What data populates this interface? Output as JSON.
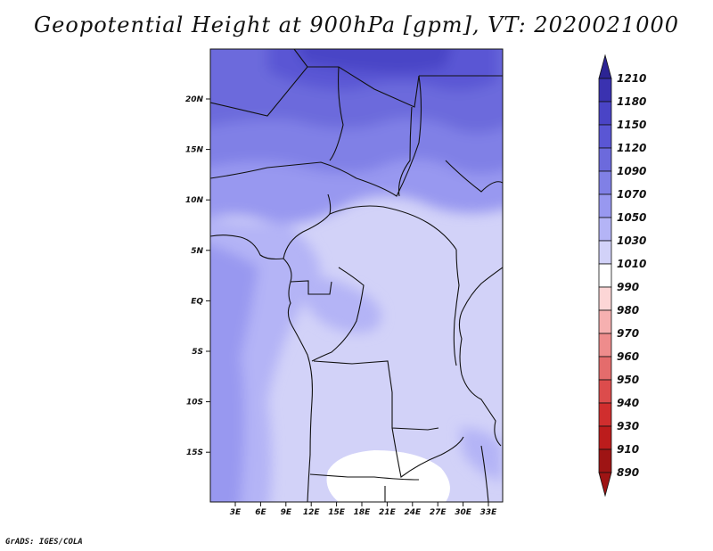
{
  "title": "Geopotential Height at 900hPa [gpm], VT: 2020021000",
  "credit": "GrADS: IGES/COLA",
  "map": {
    "lat_labels": [
      "20N",
      "15N",
      "10N",
      "5N",
      "EQ",
      "5S",
      "10S",
      "15S"
    ],
    "lon_labels": [
      "3E",
      "6E",
      "9E",
      "12E",
      "15E",
      "18E",
      "21E",
      "24E",
      "27E",
      "30E",
      "33E"
    ]
  },
  "colorbar": {
    "levels": [
      "1210",
      "1180",
      "1150",
      "1120",
      "1090",
      "1070",
      "1050",
      "1030",
      "1010",
      "990",
      "980",
      "970",
      "960",
      "950",
      "940",
      "930",
      "910",
      "890"
    ],
    "colors": [
      "#2c2494",
      "#3a32b0",
      "#4a44c6",
      "#5a56d4",
      "#6c6adc",
      "#8080e6",
      "#9898f0",
      "#b4b4f6",
      "#d2d2f8",
      "#ffffff",
      "#fcd6d6",
      "#f6b0b0",
      "#ee8c8c",
      "#e46c6c",
      "#dc4c4c",
      "#d02e2e",
      "#bc1c1c",
      "#9e1414"
    ]
  }
}
